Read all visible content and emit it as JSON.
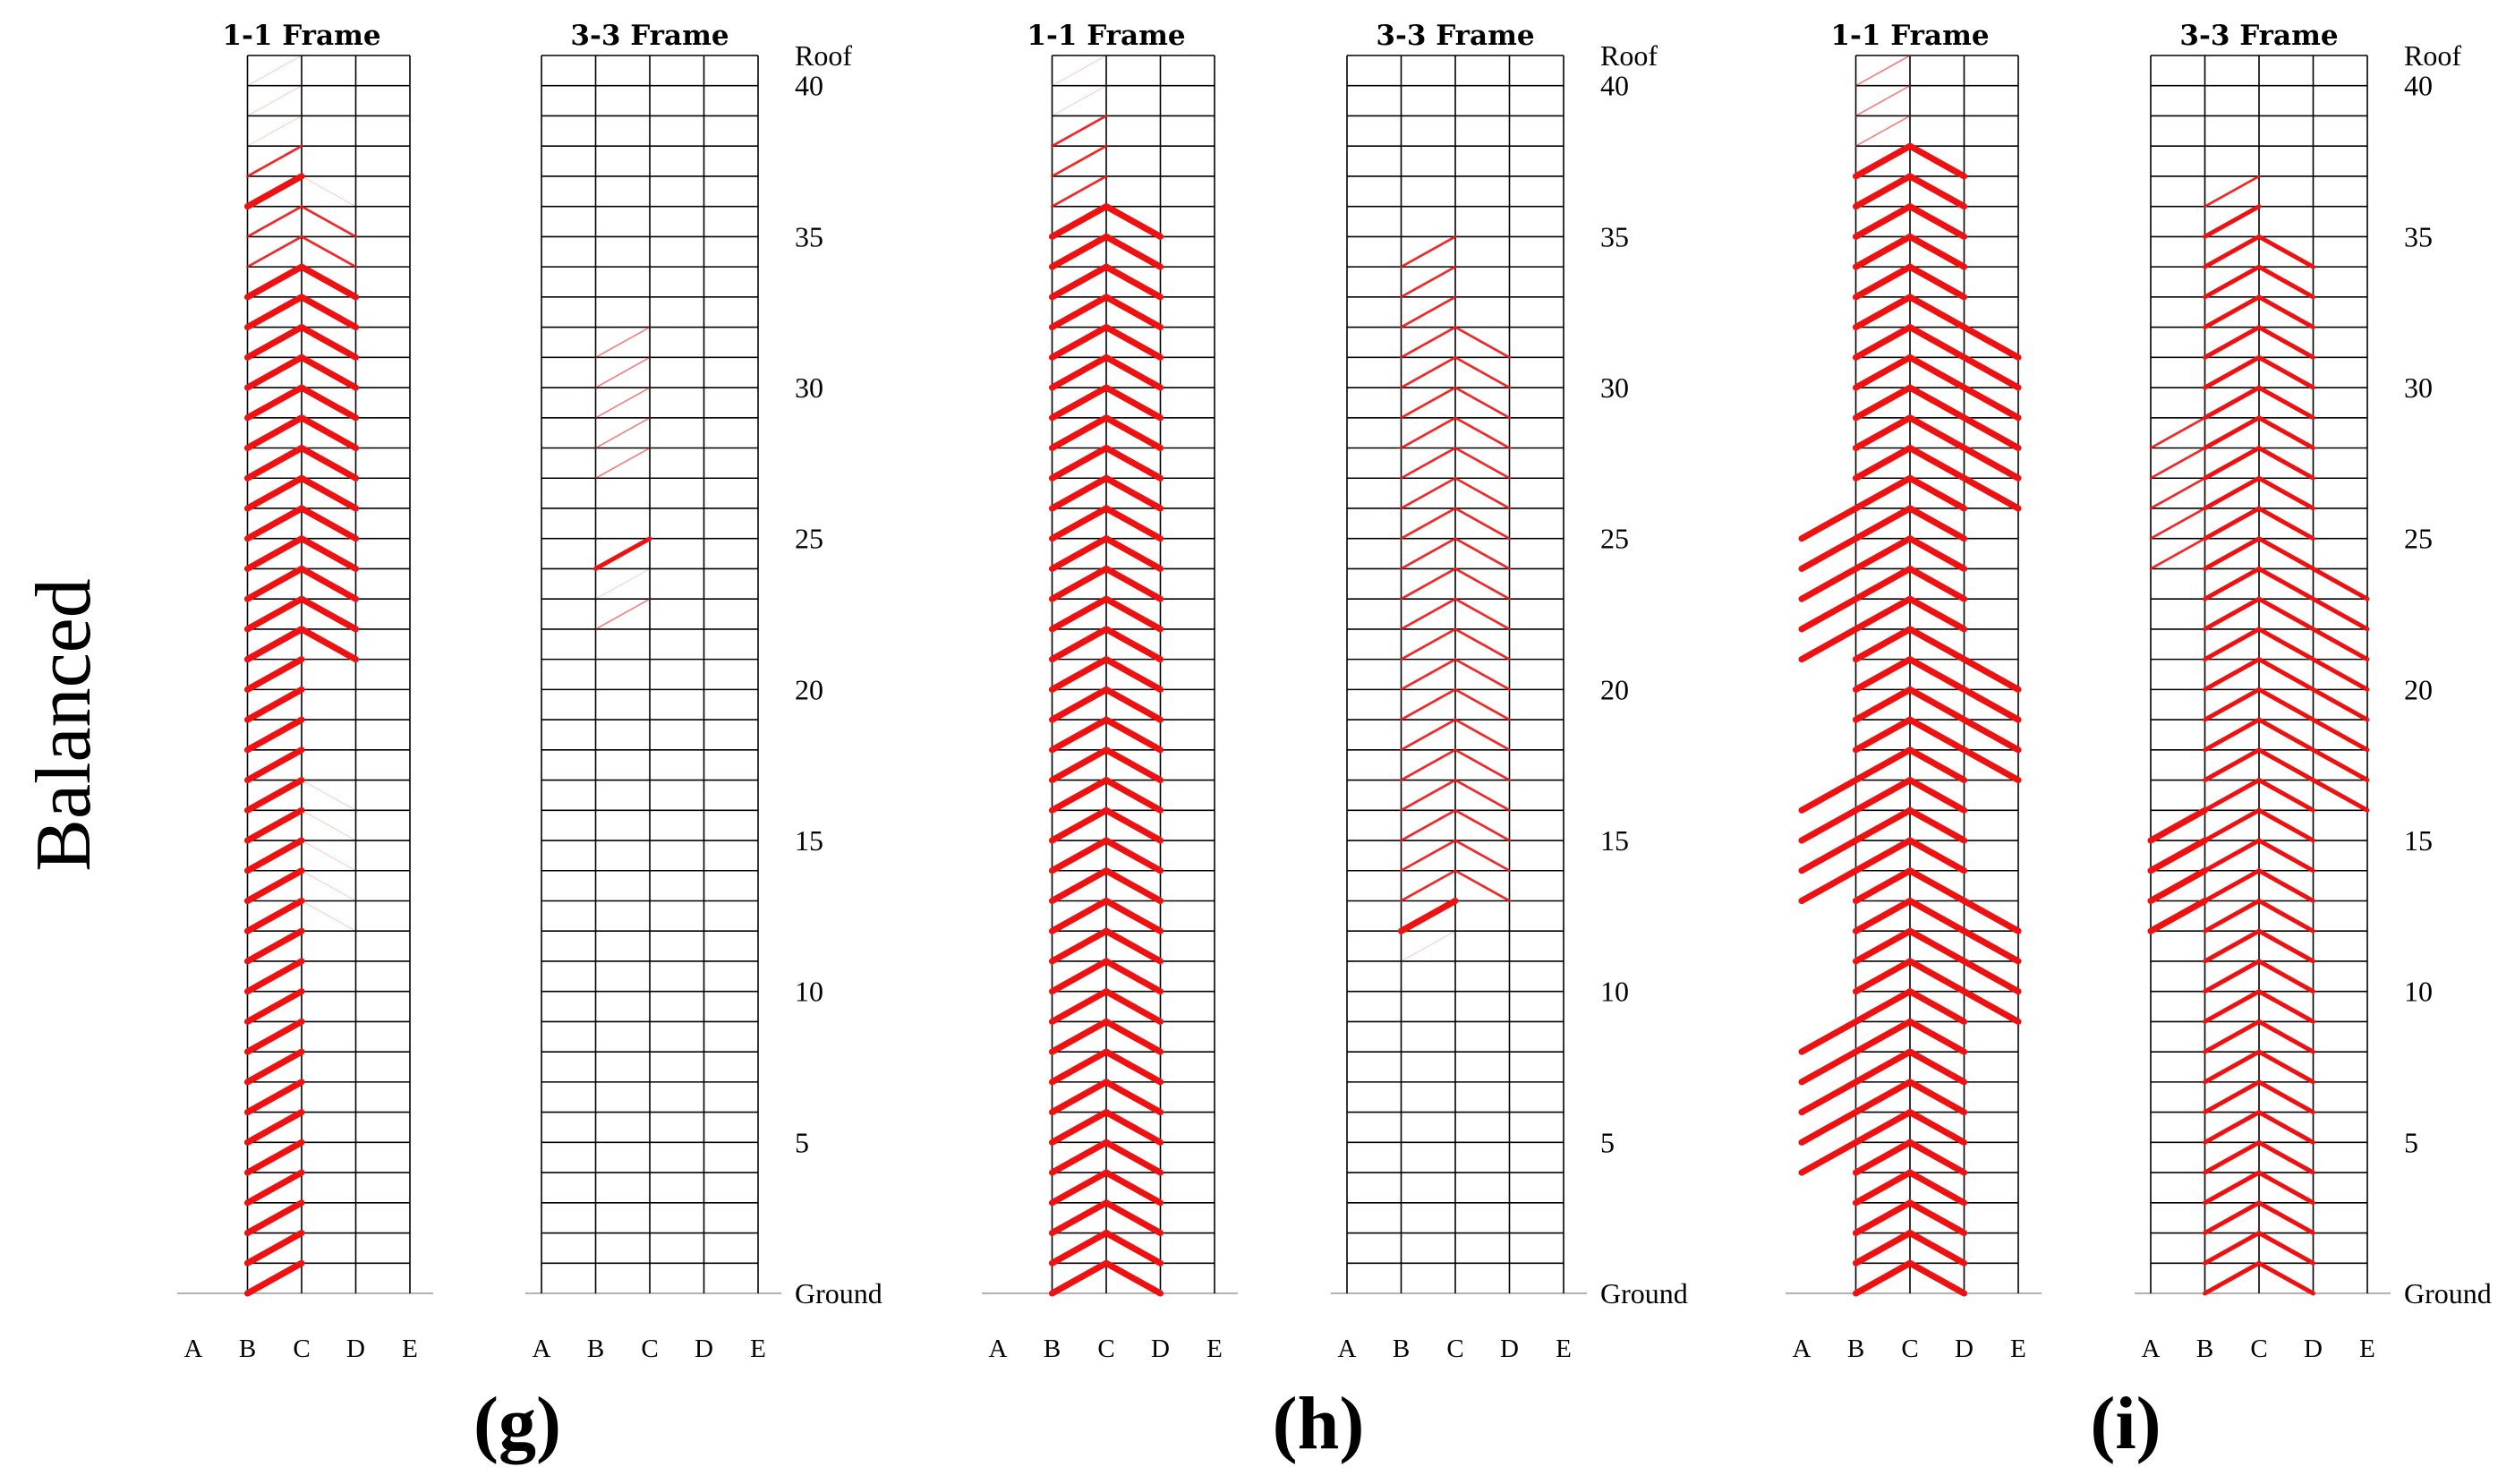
{
  "figure": {
    "row_label": "Balanced",
    "panels": [
      {
        "id": "g",
        "label": "(g)"
      },
      {
        "id": "h",
        "label": "(h)"
      },
      {
        "id": "i",
        "label": "(i)"
      }
    ],
    "frame_titles": [
      "1-1 Frame",
      "3-3 Frame"
    ],
    "columns": [
      "A",
      "B",
      "C",
      "D",
      "E"
    ],
    "roof_label": "Roof",
    "ground_label": "Ground",
    "level_ticks": [
      "40",
      "35",
      "30",
      "25",
      "20",
      "15",
      "10",
      "5"
    ],
    "colors": {
      "brace": "#ee1111",
      "grid": "#000000",
      "ground": "#9a9a9a"
    }
  },
  "chart_data": [
    {
      "type": "diagram",
      "panel": "g",
      "title": "1-1 Frame",
      "stories": 41,
      "braces": [
        {
          "bay": "BC",
          "from": 1,
          "to": 17,
          "side": "L",
          "w": 3
        },
        {
          "bay": "CD",
          "from": 13,
          "to": 17,
          "side": "R",
          "w": 0.15
        },
        {
          "bay": "BC",
          "from": 18,
          "to": 22,
          "side": "L",
          "w": 3
        },
        {
          "bay": "BC",
          "from": 22,
          "to": 34,
          "side": "L",
          "w": 3
        },
        {
          "bay": "CD",
          "from": 22,
          "to": 34,
          "side": "R",
          "w": 3
        },
        {
          "bay": "BC",
          "from": 35,
          "to": 36,
          "side": "L",
          "w": 1
        },
        {
          "bay": "CD",
          "from": 35,
          "to": 36,
          "side": "R",
          "w": 1
        },
        {
          "bay": "BC",
          "from": 37,
          "to": 37,
          "side": "L",
          "w": 3
        },
        {
          "bay": "CD",
          "from": 37,
          "to": 37,
          "side": "R",
          "w": 0.15
        },
        {
          "bay": "BC",
          "from": 38,
          "to": 38,
          "side": "L",
          "w": 1
        },
        {
          "bay": "BC",
          "from": 39,
          "to": 41,
          "side": "L",
          "w": 0.15
        }
      ]
    },
    {
      "type": "diagram",
      "panel": "g",
      "title": "3-3 Frame",
      "stories": 41,
      "braces": [
        {
          "bay": "BC",
          "from": 23,
          "to": 23,
          "side": "L",
          "w": 0.5
        },
        {
          "bay": "BC",
          "from": 24,
          "to": 24,
          "side": "L",
          "w": 0.15
        },
        {
          "bay": "BC",
          "from": 25,
          "to": 25,
          "side": "L",
          "w": 2
        },
        {
          "bay": "BC",
          "from": 28,
          "to": 32,
          "side": "L",
          "w": 0.5
        }
      ]
    },
    {
      "type": "diagram",
      "panel": "h",
      "title": "1-1 Frame",
      "stories": 41,
      "braces": [
        {
          "bay": "BC",
          "from": 1,
          "to": 36,
          "side": "L",
          "w": 3
        },
        {
          "bay": "CD",
          "from": 1,
          "to": 36,
          "side": "R",
          "w": 3
        },
        {
          "bay": "BC",
          "from": 37,
          "to": 39,
          "side": "L",
          "w": 1
        },
        {
          "bay": "BC",
          "from": 40,
          "to": 41,
          "side": "L",
          "w": 0.15
        }
      ]
    },
    {
      "type": "diagram",
      "panel": "h",
      "title": "3-3 Frame",
      "stories": 41,
      "braces": [
        {
          "bay": "BC",
          "from": 12,
          "to": 12,
          "side": "L",
          "w": 0.15
        },
        {
          "bay": "BC",
          "from": 13,
          "to": 13,
          "side": "L",
          "w": 3
        },
        {
          "bay": "BC",
          "from": 14,
          "to": 32,
          "side": "L",
          "w": 1
        },
        {
          "bay": "CD",
          "from": 14,
          "to": 32,
          "side": "R",
          "w": 1
        },
        {
          "bay": "BC",
          "from": 33,
          "to": 35,
          "side": "L",
          "w": 1
        }
      ]
    },
    {
      "type": "diagram",
      "panel": "i",
      "title": "1-1 Frame",
      "stories": 41,
      "braces": [
        {
          "bay": "BC",
          "from": 1,
          "to": 38,
          "side": "L",
          "w": 3
        },
        {
          "bay": "CD",
          "from": 1,
          "to": 38,
          "side": "R",
          "w": 3
        },
        {
          "bay": "AB",
          "from": 5,
          "to": 9,
          "side": "L",
          "w": 3
        },
        {
          "bay": "DE",
          "from": 10,
          "to": 13,
          "side": "R",
          "w": 3
        },
        {
          "bay": "AB",
          "from": 14,
          "to": 17,
          "side": "L",
          "w": 3
        },
        {
          "bay": "DE",
          "from": 18,
          "to": 21,
          "side": "R",
          "w": 3
        },
        {
          "bay": "AB",
          "from": 22,
          "to": 26,
          "side": "L",
          "w": 3
        },
        {
          "bay": "DE",
          "from": 27,
          "to": 32,
          "side": "R",
          "w": 3
        },
        {
          "bay": "BC",
          "from": 39,
          "to": 41,
          "side": "L",
          "w": 0.5
        }
      ]
    },
    {
      "type": "diagram",
      "panel": "i",
      "title": "3-3 Frame",
      "stories": 41,
      "braces": [
        {
          "bay": "BC",
          "from": 1,
          "to": 36,
          "side": "L",
          "w": 2
        },
        {
          "bay": "CD",
          "from": 1,
          "to": 35,
          "side": "R",
          "w": 2
        },
        {
          "bay": "AB",
          "from": 13,
          "to": 16,
          "side": "L",
          "w": 3
        },
        {
          "bay": "DE",
          "from": 17,
          "to": 24,
          "side": "R",
          "w": 2
        },
        {
          "bay": "AB",
          "from": 25,
          "to": 29,
          "side": "L",
          "w": 1
        },
        {
          "bay": "BC",
          "from": 37,
          "to": 37,
          "side": "L",
          "w": 1
        }
      ]
    }
  ]
}
